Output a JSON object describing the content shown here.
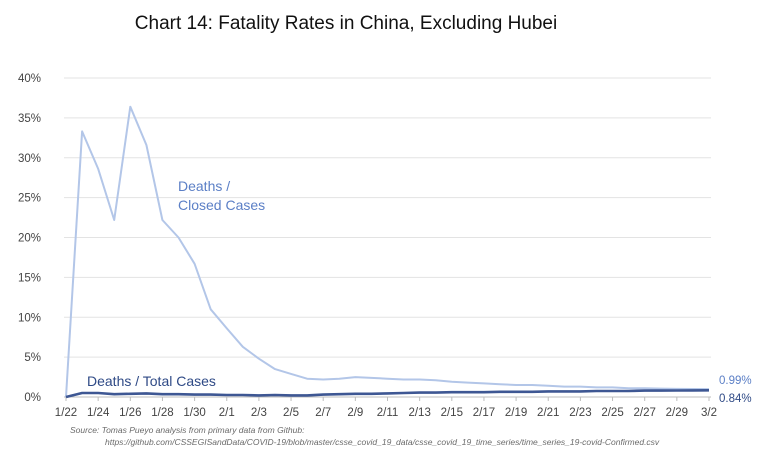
{
  "chart_data": {
    "type": "line",
    "title": "Chart 14: Fatality Rates in China, Excluding Hubei",
    "x": [
      "1/22",
      "1/23",
      "1/24",
      "1/25",
      "1/26",
      "1/27",
      "1/28",
      "1/29",
      "1/30",
      "1/31",
      "2/1",
      "2/2",
      "2/3",
      "2/4",
      "2/5",
      "2/6",
      "2/7",
      "2/8",
      "2/9",
      "2/10",
      "2/11",
      "2/12",
      "2/13",
      "2/14",
      "2/15",
      "2/16",
      "2/17",
      "2/18",
      "2/19",
      "2/20",
      "2/21",
      "2/22",
      "2/23",
      "2/24",
      "2/25",
      "2/26",
      "2/27",
      "2/28",
      "2/29",
      "3/1",
      "3/2"
    ],
    "x_tick_labels": [
      "1/22",
      "1/24",
      "1/26",
      "1/28",
      "1/30",
      "2/1",
      "2/3",
      "2/5",
      "2/7",
      "2/9",
      "2/11",
      "2/13",
      "2/15",
      "2/17",
      "2/19",
      "2/21",
      "2/23",
      "2/25",
      "2/27",
      "2/29",
      "3/2"
    ],
    "y_tick_labels": [
      "0%",
      "5%",
      "10%",
      "15%",
      "20%",
      "25%",
      "30%",
      "35%",
      "40%"
    ],
    "ylim": [
      0,
      40
    ],
    "y_unit": "%",
    "grid": "horizontal",
    "series": [
      {
        "name": "Deaths / Closed Cases",
        "color": "#b3c6e8",
        "label_lines": [
          "Deaths /",
          "Closed Cases"
        ],
        "label_color": "#5b7fc6",
        "values": [
          0,
          33.3,
          28.6,
          22.2,
          36.4,
          31.6,
          22.2,
          20.0,
          16.7,
          11.0,
          8.6,
          6.3,
          4.8,
          3.5,
          2.9,
          2.3,
          2.2,
          2.3,
          2.5,
          2.4,
          2.3,
          2.2,
          2.2,
          2.1,
          1.9,
          1.8,
          1.7,
          1.6,
          1.5,
          1.5,
          1.4,
          1.3,
          1.3,
          1.2,
          1.2,
          1.1,
          1.1,
          1.05,
          1.02,
          1.0,
          0.99
        ],
        "end_label": "0.99%"
      },
      {
        "name": "Deaths / Total Cases",
        "color": "#3e5793",
        "label_lines": [
          "Deaths / Total Cases"
        ],
        "label_color": "#2f4a86",
        "values": [
          0,
          0.5,
          0.5,
          0.35,
          0.4,
          0.45,
          0.35,
          0.35,
          0.3,
          0.3,
          0.25,
          0.25,
          0.2,
          0.25,
          0.2,
          0.2,
          0.3,
          0.35,
          0.4,
          0.4,
          0.45,
          0.5,
          0.55,
          0.55,
          0.6,
          0.6,
          0.6,
          0.65,
          0.65,
          0.65,
          0.7,
          0.7,
          0.7,
          0.75,
          0.75,
          0.75,
          0.8,
          0.8,
          0.82,
          0.83,
          0.84
        ],
        "end_label": "0.84%"
      }
    ],
    "source_lines": [
      "Source: Tomas Pueyo analysis from primary data from Github:",
      "https://github.com/CSSEGISandData/COVID-19/blob/master/csse_covid_19_data/csse_covid_19_time_series/time_series_19-covid-Confirmed.csv"
    ]
  }
}
